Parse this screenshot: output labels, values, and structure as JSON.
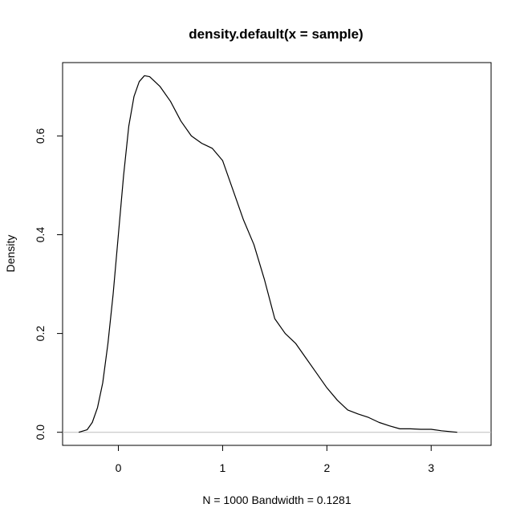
{
  "chart_data": {
    "type": "line",
    "title": "density.default(x = sample)",
    "xlabel": "N = 1000   Bandwidth = 0.1281",
    "ylabel": "Density",
    "xlim": [
      -0.535,
      3.575
    ],
    "ylim": [
      -0.0265,
      0.7485
    ],
    "x_ticks": [
      0,
      1,
      2,
      3
    ],
    "x_tick_labels": [
      "0",
      "1",
      "2",
      "3"
    ],
    "y_ticks": [
      0.0,
      0.2,
      0.4,
      0.6
    ],
    "y_tick_labels": [
      "0.0",
      "0.2",
      "0.4",
      "0.6"
    ],
    "grid": false,
    "baseline": 0,
    "colors": {
      "line": "#000000",
      "baseline": "#bebebe",
      "frame": "#000000"
    },
    "series": [
      {
        "x": [
          -0.38,
          -0.3,
          -0.25,
          -0.2,
          -0.15,
          -0.1,
          -0.05,
          0.0,
          0.05,
          0.1,
          0.15,
          0.2,
          0.25,
          0.3,
          0.35,
          0.4,
          0.5,
          0.6,
          0.7,
          0.8,
          0.9,
          1.0,
          1.1,
          1.2,
          1.3,
          1.4,
          1.5,
          1.6,
          1.7,
          1.8,
          1.9,
          2.0,
          2.1,
          2.2,
          2.3,
          2.4,
          2.5,
          2.6,
          2.7,
          2.8,
          2.9,
          3.0,
          3.1,
          3.2,
          3.25
        ],
        "values": [
          0.0,
          0.005,
          0.02,
          0.05,
          0.1,
          0.18,
          0.28,
          0.4,
          0.52,
          0.62,
          0.68,
          0.71,
          0.722,
          0.72,
          0.71,
          0.7,
          0.67,
          0.63,
          0.6,
          0.585,
          0.575,
          0.55,
          0.49,
          0.43,
          0.38,
          0.31,
          0.23,
          0.2,
          0.18,
          0.15,
          0.12,
          0.09,
          0.065,
          0.045,
          0.037,
          0.03,
          0.02,
          0.013,
          0.007,
          0.007,
          0.006,
          0.006,
          0.003,
          0.001,
          0.0
        ]
      }
    ]
  }
}
